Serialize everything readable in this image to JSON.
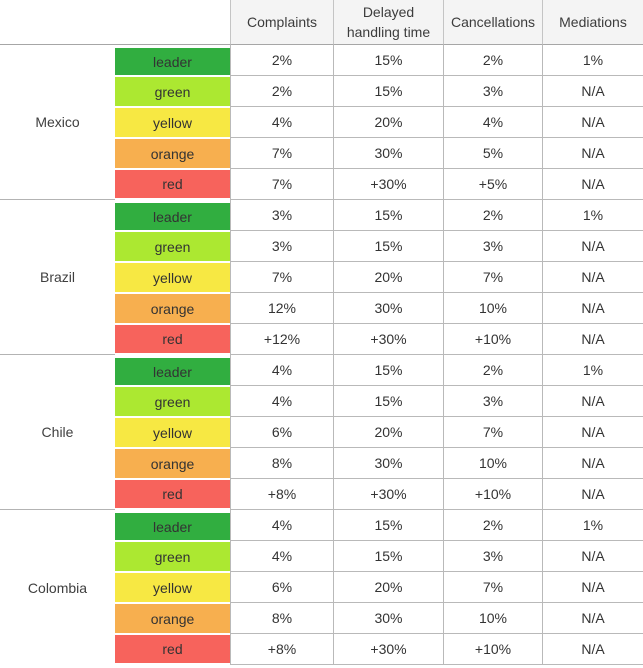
{
  "chart_data": {
    "type": "table",
    "title": "",
    "column_headers": [
      "Complaints",
      "Delayed handling time",
      "Cancellations",
      "Mediations"
    ],
    "tier_colors": {
      "leader": "#31ae40",
      "green": "#ace831",
      "yellow": "#f7e843",
      "orange": "#f7af4f",
      "red": "#f7635c"
    },
    "header_bg": "#f4f4f4",
    "grid_line_color": "#b9b9b9",
    "groups": [
      {
        "country": "Mexico",
        "rows": [
          {
            "tier": "leader",
            "values": [
              "2%",
              "15%",
              "2%",
              "1%"
            ]
          },
          {
            "tier": "green",
            "values": [
              "2%",
              "15%",
              "3%",
              "N/A"
            ]
          },
          {
            "tier": "yellow",
            "values": [
              "4%",
              "20%",
              "4%",
              "N/A"
            ]
          },
          {
            "tier": "orange",
            "values": [
              "7%",
              "30%",
              "5%",
              "N/A"
            ]
          },
          {
            "tier": "red",
            "values": [
              "7%",
              "+30%",
              "+5%",
              "N/A"
            ]
          }
        ]
      },
      {
        "country": "Brazil",
        "rows": [
          {
            "tier": "leader",
            "values": [
              "3%",
              "15%",
              "2%",
              "1%"
            ]
          },
          {
            "tier": "green",
            "values": [
              "3%",
              "15%",
              "3%",
              "N/A"
            ]
          },
          {
            "tier": "yellow",
            "values": [
              "7%",
              "20%",
              "7%",
              "N/A"
            ]
          },
          {
            "tier": "orange",
            "values": [
              "12%",
              "30%",
              "10%",
              "N/A"
            ]
          },
          {
            "tier": "red",
            "values": [
              "+12%",
              "+30%",
              "+10%",
              "N/A"
            ]
          }
        ]
      },
      {
        "country": "Chile",
        "rows": [
          {
            "tier": "leader",
            "values": [
              "4%",
              "15%",
              "2%",
              "1%"
            ]
          },
          {
            "tier": "green",
            "values": [
              "4%",
              "15%",
              "3%",
              "N/A"
            ]
          },
          {
            "tier": "yellow",
            "values": [
              "6%",
              "20%",
              "7%",
              "N/A"
            ]
          },
          {
            "tier": "orange",
            "values": [
              "8%",
              "30%",
              "10%",
              "N/A"
            ]
          },
          {
            "tier": "red",
            "values": [
              "+8%",
              "+30%",
              "+10%",
              "N/A"
            ]
          }
        ]
      },
      {
        "country": "Colombia",
        "rows": [
          {
            "tier": "leader",
            "values": [
              "4%",
              "15%",
              "2%",
              "1%"
            ]
          },
          {
            "tier": "green",
            "values": [
              "4%",
              "15%",
              "3%",
              "N/A"
            ]
          },
          {
            "tier": "yellow",
            "values": [
              "6%",
              "20%",
              "7%",
              "N/A"
            ]
          },
          {
            "tier": "orange",
            "values": [
              "8%",
              "30%",
              "10%",
              "N/A"
            ]
          },
          {
            "tier": "red",
            "values": [
              "+8%",
              "+30%",
              "+10%",
              "N/A"
            ]
          }
        ]
      }
    ]
  }
}
